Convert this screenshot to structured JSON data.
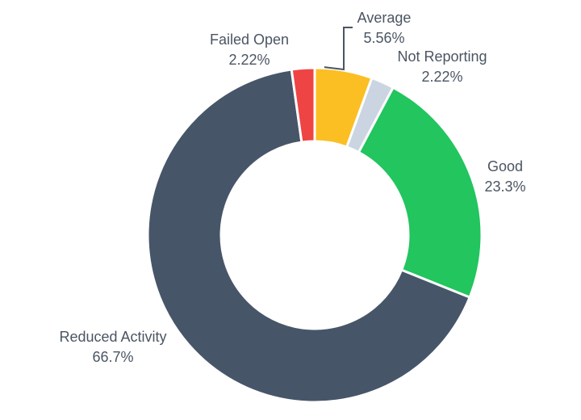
{
  "chart_data": {
    "type": "pie",
    "donut": true,
    "title": "",
    "slices": [
      {
        "label": "Average",
        "percent_label": "5.56%",
        "value": 5.56,
        "color": "#fbbf24"
      },
      {
        "label": "Not Reporting",
        "percent_label": "2.22%",
        "value": 2.22,
        "color": "#cbd5e1"
      },
      {
        "label": "Good",
        "percent_label": "23.3%",
        "value": 23.3,
        "color": "#22c55e"
      },
      {
        "label": "Reduced Activity",
        "percent_label": "66.7%",
        "value": 66.7,
        "color": "#475569"
      },
      {
        "label": "Failed Open",
        "percent_label": "2.22%",
        "value": 2.22,
        "color": "#ef4444"
      }
    ]
  }
}
